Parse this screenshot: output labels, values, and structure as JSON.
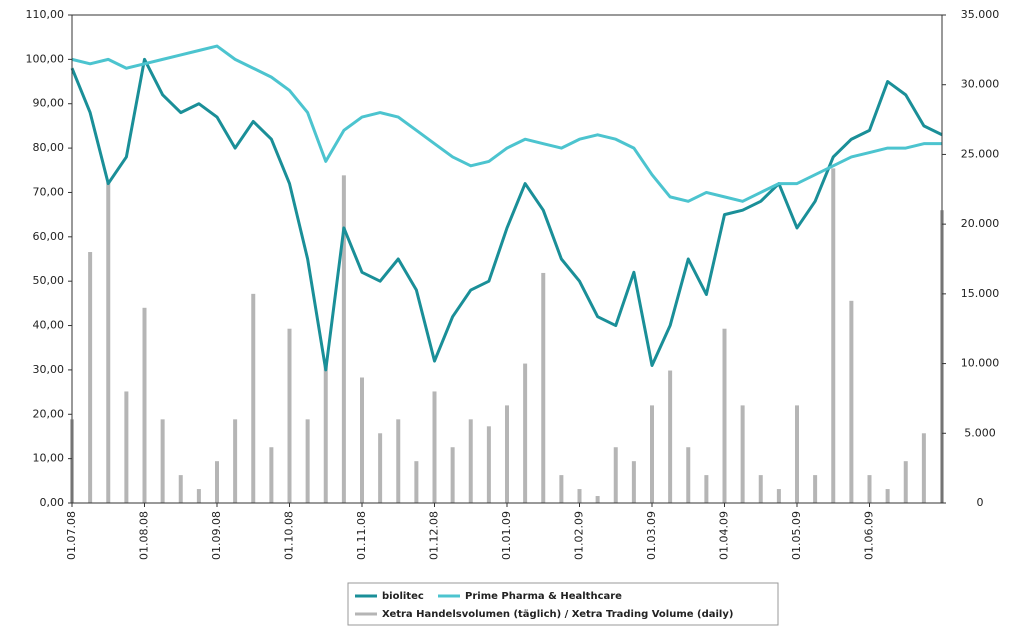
{
  "chart_data": {
    "type": "line-bar",
    "categories": [
      "01.07.08",
      null,
      null,
      null,
      "01.08.08",
      null,
      null,
      null,
      "01.09.08",
      null,
      null,
      null,
      "01.10.08",
      null,
      null,
      null,
      "01.11.08",
      null,
      null,
      null,
      "01.12.08",
      null,
      null,
      null,
      "01.01.09",
      null,
      null,
      null,
      "01.02.09",
      null,
      null,
      null,
      "01.03.09",
      null,
      null,
      null,
      "01.04.09",
      null,
      null,
      null,
      "01.05.09",
      null,
      null,
      null,
      "01.06.09",
      null,
      null,
      null,
      null
    ],
    "series": [
      {
        "name": "biolitec",
        "color": "#1a8f98",
        "kind": "line",
        "values": [
          98,
          88,
          72,
          78,
          100,
          92,
          88,
          90,
          87,
          80,
          86,
          82,
          72,
          55,
          30,
          62,
          52,
          50,
          55,
          48,
          32,
          42,
          48,
          50,
          62,
          72,
          66,
          55,
          50,
          42,
          40,
          52,
          31,
          40,
          55,
          47,
          65,
          66,
          68,
          72,
          62,
          68,
          78,
          82,
          84,
          95,
          92,
          85,
          83
        ]
      },
      {
        "name": "Prime Pharma & Healthcare",
        "color": "#4cc4cf",
        "kind": "line",
        "values": [
          100,
          99,
          100,
          98,
          99,
          100,
          101,
          102,
          103,
          100,
          98,
          96,
          93,
          88,
          77,
          84,
          87,
          88,
          87,
          84,
          81,
          78,
          76,
          77,
          80,
          82,
          81,
          80,
          82,
          83,
          82,
          80,
          74,
          69,
          68,
          70,
          69,
          68,
          70,
          72,
          72,
          74,
          76,
          78,
          79,
          80,
          80,
          81,
          81
        ]
      },
      {
        "name": "Xetra Handelsvolumen (täglich) / Xetra Trading Volume (daily)",
        "color": "#b5b5b5",
        "kind": "bar",
        "axis": "y2",
        "values": [
          6000,
          18000,
          23000,
          8000,
          14000,
          6000,
          2000,
          1000,
          3000,
          6000,
          15000,
          4000,
          12500,
          6000,
          10000,
          23500,
          9000,
          5000,
          6000,
          3000,
          8000,
          4000,
          6000,
          5500,
          7000,
          10000,
          16500,
          2000,
          1000,
          500,
          4000,
          3000,
          7000,
          9500,
          4000,
          2000,
          12500,
          7000,
          2000,
          1000,
          7000,
          2000,
          24000,
          14500,
          2000,
          1000,
          3000,
          5000,
          21000
        ]
      }
    ],
    "ylim": [
      0,
      110
    ],
    "yticks": [
      {
        "value": 0,
        "label": "0,00"
      },
      {
        "value": 10,
        "label": "10,00"
      },
      {
        "value": 20,
        "label": "20,00"
      },
      {
        "value": 30,
        "label": "30,00"
      },
      {
        "value": 40,
        "label": "40,00"
      },
      {
        "value": 50,
        "label": "50,00"
      },
      {
        "value": 60,
        "label": "60,00"
      },
      {
        "value": 70,
        "label": "70,00"
      },
      {
        "value": 80,
        "label": "80,00"
      },
      {
        "value": 90,
        "label": "90,00"
      },
      {
        "value": 100,
        "label": "100,00"
      },
      {
        "value": 110,
        "label": "110,00"
      }
    ],
    "y2lim": [
      0,
      35000
    ],
    "y2ticks": [
      0,
      {
        "value": 5000,
        "label": "5.000"
      },
      {
        "value": 10000,
        "label": "10.000"
      },
      {
        "value": 15000,
        "label": "15.000"
      },
      {
        "value": 20000,
        "label": "20.000"
      },
      {
        "value": 25000,
        "label": "25.000"
      },
      {
        "value": 30000,
        "label": "30.000"
      },
      {
        "value": 35000,
        "label": "35.000"
      }
    ],
    "legend": "bottom"
  }
}
